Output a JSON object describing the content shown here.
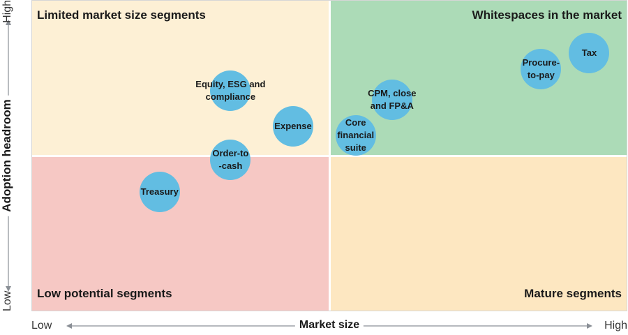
{
  "chart_data": {
    "type": "scatter",
    "xlabel": "Market size",
    "ylabel": "Adoption headroom",
    "x_ticks": {
      "low": "Low",
      "high": "High"
    },
    "y_ticks": {
      "low": "Low",
      "high": "High"
    },
    "xlim": [
      0,
      1
    ],
    "ylim": [
      0,
      1
    ],
    "quadrants": [
      {
        "id": "top-left",
        "label": "Limited market size segments",
        "color": "#fdf0d5"
      },
      {
        "id": "top-right",
        "label": "Whitespaces in the market",
        "color": "#acdbb7"
      },
      {
        "id": "bottom-left",
        "label": "Low potential segments",
        "color": "#f6c8c4"
      },
      {
        "id": "bottom-right",
        "label": "Mature segments",
        "color": "#fde7c1"
      }
    ],
    "bubble_color": "#62bde2",
    "points": [
      {
        "label": "Equity, ESG and\ncompliance",
        "x": 0.333,
        "y": 0.711
      },
      {
        "label": "Expense",
        "x": 0.438,
        "y": 0.597
      },
      {
        "label": "Order-to\n-cash",
        "x": 0.333,
        "y": 0.489
      },
      {
        "label": "Treasury",
        "x": 0.214,
        "y": 0.386
      },
      {
        "label": "CPM, close\nand FP&A",
        "x": 0.604,
        "y": 0.682
      },
      {
        "label": "Core\nfinancial\nsuite",
        "x": 0.543,
        "y": 0.567
      },
      {
        "label": "Procure-\nto-pay",
        "x": 0.854,
        "y": 0.78
      },
      {
        "label": "Tax",
        "x": 0.935,
        "y": 0.832
      }
    ]
  }
}
